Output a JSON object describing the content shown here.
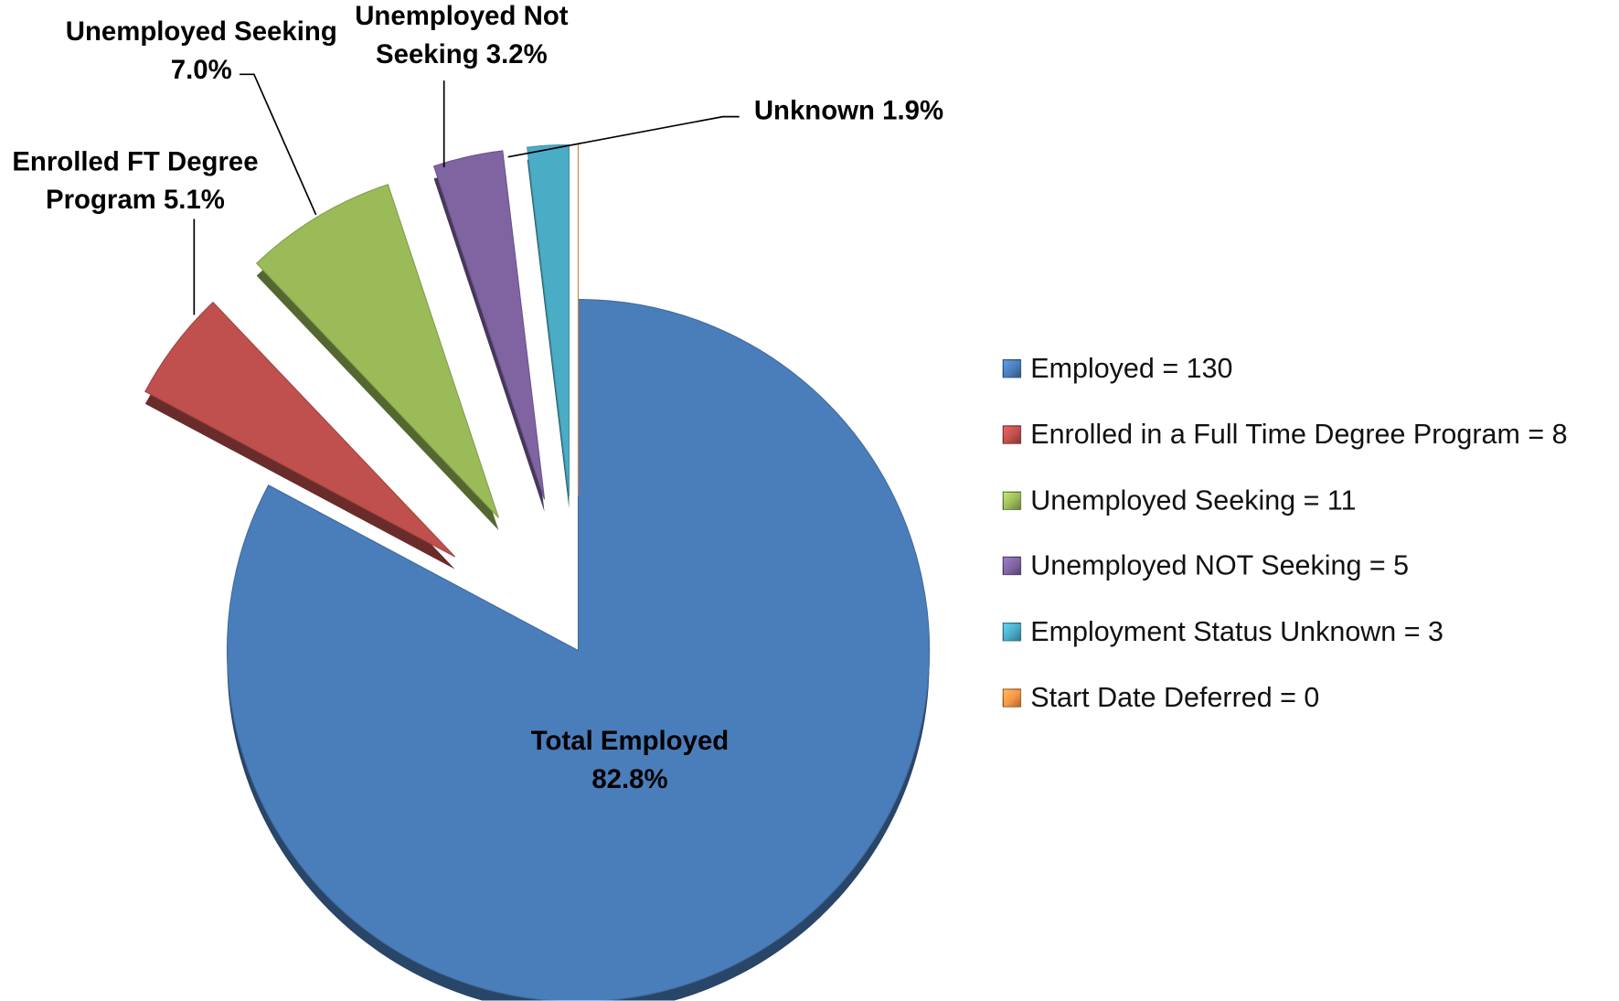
{
  "chart_data": {
    "type": "pie",
    "categories": [
      "Employed = 130",
      "Enrolled in a Full Time Degree Program = 8",
      "Unemployed Seeking = 11",
      "Unemployed NOT Seeking = 5",
      "Employment Status Unknown = 3",
      "Start Date Deferred = 0"
    ],
    "values": [
      82.8,
      5.1,
      7.0,
      3.2,
      1.9,
      0
    ],
    "value_labels": [
      "Total Employed\n82.8%",
      "Enrolled FT Degree\nProgram 5.1%",
      "Unemployed Seeking\n7.0%",
      "Unemployed Not\nSeeking 3.2%",
      "Unknown 1.9%",
      null
    ],
    "colors": [
      "#4a7ebb",
      "#c0504d",
      "#9bbb59",
      "#8064a2",
      "#4bacc6",
      "#f79646"
    ],
    "legend": "right"
  }
}
